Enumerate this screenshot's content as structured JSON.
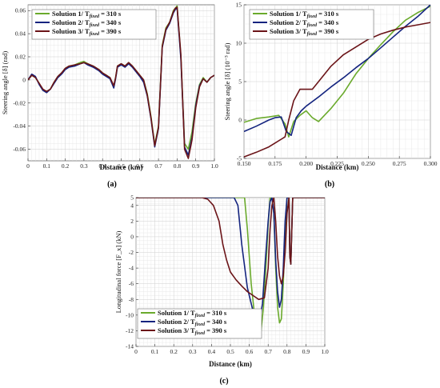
{
  "colors": {
    "s1": "#6aaa2c",
    "s2": "#14247f",
    "s3": "#6b1418"
  },
  "chart_data": [
    {
      "panel": "(a)",
      "type": "line",
      "xlabel": "Distance (km)",
      "ylabel": "Steering angle [δ] (rad)",
      "xlim": [
        0,
        1
      ],
      "ylim": [
        -0.07,
        0.065
      ],
      "xticks": [
        0,
        0.1,
        0.2,
        0.3,
        0.4,
        0.5,
        0.6,
        0.7,
        0.8,
        0.9,
        1
      ],
      "xtick_labels": [
        "0",
        "0.1",
        "0.2",
        "0.3",
        "0.4",
        "0.5",
        "0.6",
        "0.7",
        "0.8",
        "0.9",
        "1.0"
      ],
      "yticks": [
        -0.06,
        -0.04,
        -0.02,
        0,
        0.02,
        0.04,
        0.06
      ],
      "ytick_labels": [
        "-0.06",
        "-0.04",
        "-0.02",
        "0",
        "0.02",
        "0.04",
        "0.06"
      ],
      "grid": true,
      "legend": "top-left",
      "series": [
        {
          "name": "Solution 1/ T_fixed = 310 s",
          "color_key": "s1",
          "x": [
            0,
            0.02,
            0.04,
            0.06,
            0.08,
            0.1,
            0.12,
            0.14,
            0.16,
            0.18,
            0.2,
            0.22,
            0.25,
            0.28,
            0.3,
            0.32,
            0.35,
            0.38,
            0.4,
            0.42,
            0.44,
            0.46,
            0.47,
            0.48,
            0.5,
            0.52,
            0.54,
            0.56,
            0.58,
            0.6,
            0.62,
            0.64,
            0.66,
            0.68,
            0.7,
            0.72,
            0.74,
            0.76,
            0.78,
            0.79,
            0.8,
            0.82,
            0.84,
            0.86,
            0.88,
            0.9,
            0.92,
            0.94,
            0.96,
            0.98,
            1.0
          ],
          "y": [
            0,
            0.004,
            0.002,
            -0.003,
            -0.009,
            -0.01,
            -0.008,
            -0.002,
            0.003,
            0.006,
            0.01,
            0.012,
            0.013,
            0.015,
            0.016,
            0.014,
            0.012,
            0.009,
            0.006,
            0.004,
            0.002,
            -0.006,
            0.002,
            0.012,
            0.014,
            0.012,
            0.015,
            0.012,
            0.008,
            0.004,
            0.0,
            -0.012,
            -0.032,
            -0.056,
            -0.04,
            0.03,
            0.045,
            0.05,
            0.06,
            0.062,
            0.064,
            0.02,
            -0.055,
            -0.06,
            -0.045,
            -0.02,
            -0.004,
            0.002,
            -0.002,
            0.002,
            0.004
          ]
        },
        {
          "name": "Solution 2/ T_fixed = 340 s",
          "color_key": "s2",
          "x": [
            0,
            0.02,
            0.04,
            0.06,
            0.08,
            0.1,
            0.12,
            0.14,
            0.16,
            0.18,
            0.2,
            0.22,
            0.25,
            0.28,
            0.3,
            0.32,
            0.35,
            0.38,
            0.4,
            0.42,
            0.44,
            0.46,
            0.47,
            0.48,
            0.5,
            0.52,
            0.54,
            0.56,
            0.58,
            0.6,
            0.62,
            0.64,
            0.66,
            0.68,
            0.7,
            0.72,
            0.74,
            0.76,
            0.78,
            0.79,
            0.8,
            0.82,
            0.84,
            0.86,
            0.88,
            0.9,
            0.92,
            0.94,
            0.96,
            0.98,
            1.0
          ],
          "y": [
            0,
            0.005,
            0.003,
            -0.004,
            -0.009,
            -0.011,
            -0.008,
            -0.003,
            0.002,
            0.005,
            0.009,
            0.011,
            0.012,
            0.014,
            0.015,
            0.013,
            0.011,
            0.008,
            0.005,
            0.003,
            0.001,
            -0.007,
            0.001,
            0.011,
            0.013,
            0.011,
            0.014,
            0.011,
            0.007,
            0.003,
            -0.002,
            -0.014,
            -0.034,
            -0.058,
            -0.042,
            0.028,
            0.043,
            0.049,
            0.058,
            0.061,
            0.062,
            0.018,
            -0.058,
            -0.065,
            -0.05,
            -0.022,
            -0.005,
            0.001,
            -0.002,
            0.002,
            0.004
          ]
        },
        {
          "name": "Solution 3/ T_fixed = 390 s",
          "color_key": "s3",
          "x": [
            0,
            0.02,
            0.04,
            0.06,
            0.08,
            0.1,
            0.12,
            0.14,
            0.16,
            0.18,
            0.2,
            0.22,
            0.25,
            0.28,
            0.3,
            0.32,
            0.35,
            0.38,
            0.4,
            0.42,
            0.44,
            0.46,
            0.47,
            0.48,
            0.5,
            0.52,
            0.54,
            0.56,
            0.58,
            0.6,
            0.62,
            0.64,
            0.66,
            0.68,
            0.7,
            0.72,
            0.74,
            0.76,
            0.78,
            0.79,
            0.8,
            0.82,
            0.84,
            0.86,
            0.88,
            0.9,
            0.92,
            0.94,
            0.96,
            0.98,
            1.0
          ],
          "y": [
            0,
            0.004,
            0.002,
            -0.003,
            -0.008,
            -0.01,
            -0.008,
            -0.002,
            0.003,
            0.006,
            0.01,
            0.012,
            0.013,
            0.014,
            0.015,
            0.014,
            0.012,
            0.009,
            0.006,
            0.004,
            0.002,
            -0.005,
            0.002,
            0.012,
            0.014,
            0.012,
            0.015,
            0.012,
            0.008,
            0.004,
            0.0,
            -0.013,
            -0.033,
            -0.057,
            -0.041,
            0.029,
            0.044,
            0.05,
            0.059,
            0.062,
            0.063,
            0.022,
            -0.06,
            -0.068,
            -0.052,
            -0.024,
            -0.006,
            0.001,
            -0.002,
            0.002,
            0.004
          ]
        }
      ]
    },
    {
      "panel": "(b)",
      "type": "line",
      "xlabel": "Distance (km)",
      "ylabel": "Steering angle [δ] (10⁻³ rad)",
      "xlim": [
        0.15,
        0.3
      ],
      "ylim": [
        -5,
        15
      ],
      "xticks": [
        0.15,
        0.175,
        0.2,
        0.225,
        0.25,
        0.275,
        0.3
      ],
      "xtick_labels": [
        "0.150",
        "0.175",
        "0.200",
        "0.225",
        "0.250",
        "0.275",
        "0.300"
      ],
      "yticks": [
        -5,
        0,
        5,
        10,
        15
      ],
      "ytick_labels": [
        "-5",
        "0",
        "5",
        "10",
        "15"
      ],
      "grid": true,
      "legend": "top-left",
      "series": [
        {
          "name": "Solution 1/ T_fixed = 310 s",
          "color_key": "s1",
          "x": [
            0.15,
            0.16,
            0.17,
            0.178,
            0.183,
            0.186,
            0.19,
            0.195,
            0.2,
            0.205,
            0.21,
            0.22,
            0.23,
            0.24,
            0.25,
            0.26,
            0.27,
            0.28,
            0.29,
            0.3
          ],
          "y": [
            -0.3,
            0.2,
            0.4,
            0.6,
            -0.5,
            -2.2,
            -0.2,
            0.6,
            1.2,
            0.3,
            -0.2,
            1.5,
            3.5,
            6.0,
            8.0,
            9.8,
            11.5,
            13.0,
            14.0,
            14.8
          ]
        },
        {
          "name": "Solution 2/ T_fixed = 340 s",
          "color_key": "s2",
          "x": [
            0.15,
            0.16,
            0.17,
            0.175,
            0.18,
            0.184,
            0.188,
            0.192,
            0.196,
            0.2,
            0.21,
            0.22,
            0.23,
            0.24,
            0.25,
            0.26,
            0.27,
            0.28,
            0.29,
            0.3
          ],
          "y": [
            -1.5,
            -0.8,
            0.0,
            0.3,
            0.4,
            -1.5,
            -2.0,
            0.3,
            1.2,
            1.8,
            3.0,
            4.3,
            5.5,
            6.8,
            8.0,
            9.4,
            10.8,
            12.2,
            13.5,
            15.0
          ]
        },
        {
          "name": "Solution 3/ T_fixed = 390 s",
          "color_key": "s3",
          "x": [
            0.15,
            0.16,
            0.17,
            0.175,
            0.18,
            0.183,
            0.186,
            0.19,
            0.195,
            0.2,
            0.205,
            0.21,
            0.22,
            0.23,
            0.24,
            0.25,
            0.26,
            0.27,
            0.28,
            0.29,
            0.3
          ],
          "y": [
            -4.8,
            -4.2,
            -3.5,
            -3.0,
            -2.5,
            -2.2,
            0.0,
            2.5,
            4.0,
            4.0,
            4.0,
            5.0,
            7.0,
            8.5,
            9.5,
            10.5,
            11.2,
            11.7,
            12.1,
            12.4,
            12.7
          ]
        }
      ]
    },
    {
      "panel": "(c)",
      "type": "line",
      "xlabel": "Distance (km)",
      "ylabel": "Longitudinal force [F_x] (kN)",
      "xlim": [
        0,
        1
      ],
      "ylim": [
        -14,
        5
      ],
      "xticks": [
        0,
        0.1,
        0.2,
        0.3,
        0.4,
        0.5,
        0.6,
        0.7,
        0.8,
        0.9,
        1
      ],
      "xtick_labels": [
        "0",
        "0.1",
        "0.2",
        "0.3",
        "0.4",
        "0.5",
        "0.6",
        "0.7",
        "0.8",
        "0.9",
        "1.0"
      ],
      "yticks": [
        -14,
        -12,
        -10,
        -8,
        -6,
        -4,
        -2,
        0,
        2,
        4,
        5
      ],
      "ytick_labels": [
        "-14",
        "-12",
        "-10",
        "-8",
        "-6",
        "-4",
        "-2",
        "0",
        "2",
        "4",
        "5"
      ],
      "grid": true,
      "legend": "bottom-left",
      "series": [
        {
          "name": "Solution 1/ T_fixed = 310 s",
          "color_key": "s1",
          "x": [
            0,
            0.55,
            0.575,
            0.59,
            0.61,
            0.63,
            0.645,
            0.66,
            0.675,
            0.69,
            0.7,
            0.71,
            0.72,
            0.73,
            0.74,
            0.75,
            0.76,
            0.77,
            0.78,
            0.79,
            0.8,
            0.81,
            0.815,
            0.82,
            0.83,
            0.84,
            1.0
          ],
          "y": [
            5,
            5,
            5,
            1.0,
            -6.0,
            -10.5,
            -12.6,
            -12.5,
            -9.0,
            -3.0,
            1.5,
            5,
            5,
            3.0,
            -4.0,
            -9.0,
            -11.0,
            -10.5,
            -6.0,
            1.0,
            5,
            5,
            -2.5,
            -3.5,
            5,
            5,
            5
          ]
        },
        {
          "name": "Solution 2/ T_fixed = 340 s",
          "color_key": "s2",
          "x": [
            0,
            0.5,
            0.52,
            0.54,
            0.56,
            0.59,
            0.62,
            0.64,
            0.655,
            0.67,
            0.685,
            0.7,
            0.71,
            0.72,
            0.73,
            0.74,
            0.75,
            0.76,
            0.77,
            0.78,
            0.79,
            0.8,
            0.81,
            0.815,
            0.82,
            0.83,
            0.84,
            1.0
          ],
          "y": [
            5,
            5,
            5,
            4.0,
            -1.0,
            -6.5,
            -9.5,
            -10.7,
            -10.8,
            -8.5,
            -3.0,
            2.0,
            4.5,
            5,
            3.0,
            -3.0,
            -7.0,
            -9.0,
            -8.0,
            -4.0,
            2.0,
            5,
            5,
            -2.5,
            -3.5,
            5,
            5,
            5
          ]
        },
        {
          "name": "Solution 3/ T_fixed = 390 s",
          "color_key": "s3",
          "x": [
            0,
            0.35,
            0.38,
            0.41,
            0.44,
            0.46,
            0.48,
            0.5,
            0.53,
            0.56,
            0.59,
            0.62,
            0.65,
            0.68,
            0.7,
            0.71,
            0.72,
            0.73,
            0.74,
            0.75,
            0.76,
            0.77,
            0.78,
            0.79,
            0.8,
            0.81,
            0.815,
            0.82,
            0.83,
            0.84,
            1.0
          ],
          "y": [
            5,
            5,
            4.8,
            4.0,
            2.0,
            -1.0,
            -3.0,
            -4.5,
            -5.5,
            -6.3,
            -7.0,
            -7.5,
            -8.0,
            -7.8,
            -4.0,
            1.0,
            4.0,
            5,
            2.0,
            -2.5,
            -5.0,
            -6.0,
            -5.0,
            -2.0,
            3.0,
            5,
            -2.5,
            -3.5,
            5,
            5,
            5
          ]
        }
      ]
    }
  ]
}
